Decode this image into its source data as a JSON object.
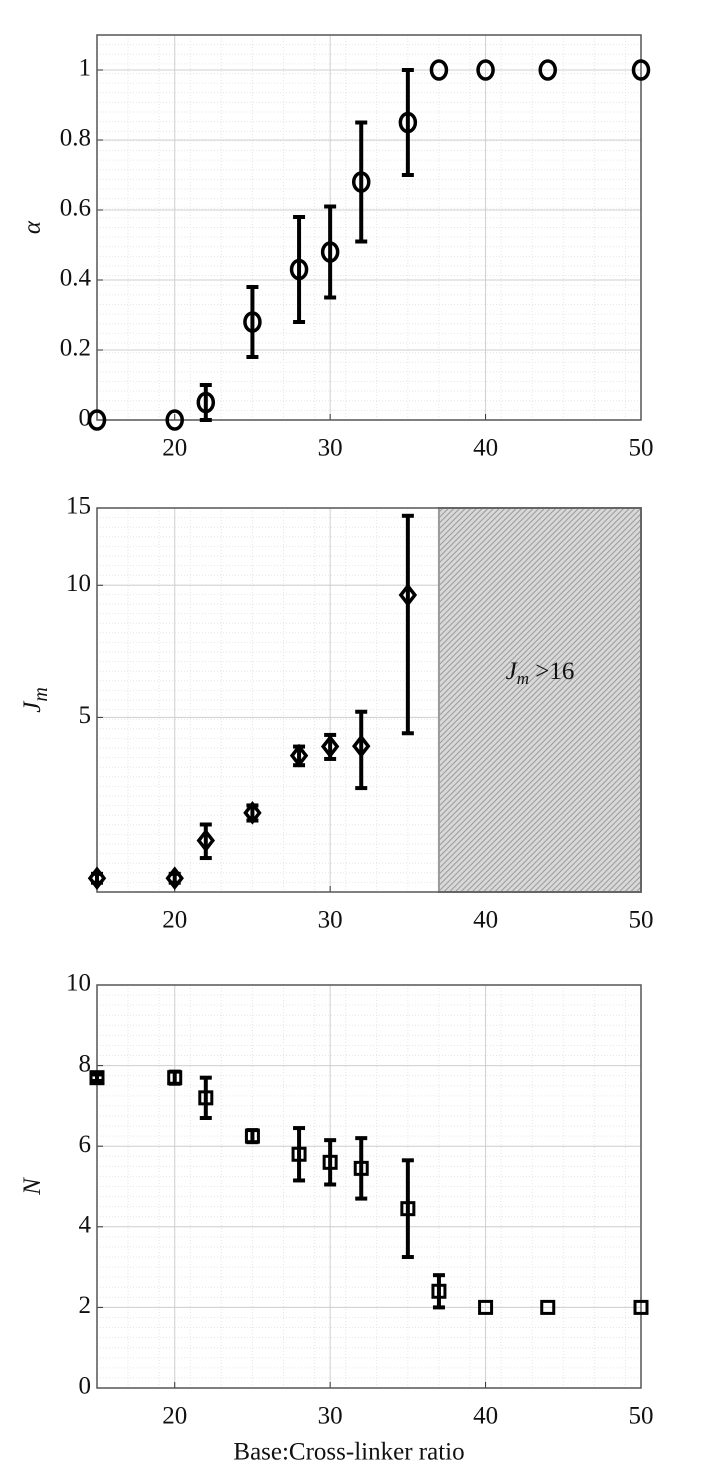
{
  "chart_data": [
    {
      "type": "errorbar",
      "marker": "circle",
      "ylabel": "α",
      "x": [
        15,
        20,
        22,
        25,
        28,
        30,
        32,
        35,
        37,
        40,
        44,
        50
      ],
      "values": [
        0,
        0,
        0.05,
        0.28,
        0.43,
        0.48,
        0.68,
        0.85,
        1,
        1,
        1,
        1
      ],
      "errors": [
        0,
        0,
        0.05,
        0.1,
        0.15,
        0.13,
        0.17,
        0.15,
        0,
        0,
        0,
        0
      ],
      "xlim": [
        15,
        50
      ],
      "xticks": [
        20,
        30,
        40,
        50
      ],
      "ylim": [
        0,
        1.1
      ],
      "yticks": [
        0,
        0.2,
        0.4,
        0.6,
        0.8,
        1
      ],
      "grid": true,
      "color": "#000000"
    },
    {
      "type": "errorbar",
      "marker": "diamond",
      "ylabel": "J",
      "ylabel_subscript": "m",
      "yscale": "log",
      "x": [
        15,
        20,
        22,
        25,
        28,
        30,
        32,
        35
      ],
      "values": [
        2.15,
        2.15,
        2.62,
        3.03,
        4.09,
        4.29,
        4.3,
        9.5
      ],
      "errors": [
        0.05,
        0.05,
        0.23,
        0.12,
        0.2,
        0.27,
        0.85,
        4.9
      ],
      "xlim": [
        15,
        50
      ],
      "xticks": [
        20,
        30,
        40,
        50
      ],
      "ylim": [
        2,
        15
      ],
      "yticks": [
        5,
        10,
        15
      ],
      "grid": true,
      "color": "#000000",
      "shaded_region": {
        "x": [
          37,
          50
        ],
        "color": "#9a9a9a"
      },
      "annotation": {
        "symbol": "J",
        "subscript": "m",
        "text": " >16"
      }
    },
    {
      "type": "errorbar",
      "marker": "square",
      "ylabel": "N",
      "xlabel": "Base:Cross-linker ratio",
      "x": [
        15,
        20,
        22,
        25,
        28,
        30,
        32,
        35,
        37,
        40,
        44,
        50
      ],
      "values": [
        7.7,
        7.7,
        7.2,
        6.25,
        5.8,
        5.6,
        5.45,
        4.45,
        2.4,
        2,
        2,
        2
      ],
      "errors": [
        0.08,
        0.15,
        0.5,
        0.15,
        0.65,
        0.55,
        0.75,
        1.2,
        0.4,
        0,
        0,
        0
      ],
      "xlim": [
        15,
        50
      ],
      "xticks": [
        20,
        30,
        40,
        50
      ],
      "ylim": [
        0,
        10
      ],
      "yticks": [
        0,
        2,
        4,
        6,
        8,
        10
      ],
      "grid": true,
      "color": "#000000"
    }
  ]
}
